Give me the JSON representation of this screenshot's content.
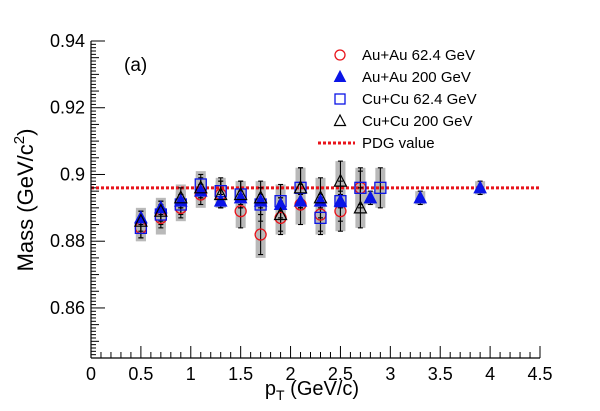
{
  "chart_data": {
    "type": "scatter",
    "panel_label": "(a)",
    "xlabel": {
      "main": "p",
      "sub": "T",
      "rest": " (GeV/c)"
    },
    "ylabel": {
      "main": "Mass (GeV/c",
      "sup": "2",
      "rest": ")"
    },
    "xlim": [
      0,
      4.5
    ],
    "ylim": [
      0.845,
      0.94
    ],
    "xticks": [
      0,
      0.5,
      1,
      1.5,
      2,
      2.5,
      3,
      3.5,
      4,
      4.5
    ],
    "xtick_labels": [
      "0",
      "0.5",
      "1",
      "1.5",
      "2",
      "2.5",
      "3",
      "3.5",
      "4",
      "4.5"
    ],
    "yticks": [
      0.86,
      0.88,
      0.9,
      0.92,
      0.94
    ],
    "ytick_labels": [
      "0.86",
      "0.88",
      "0.9",
      "0.92",
      "0.94"
    ],
    "grid": false,
    "legend_position": "top-right",
    "reference_line": {
      "name": "PDG value",
      "y": 0.896,
      "color": "#e8131a"
    },
    "series": [
      {
        "name": "Au+Au 62.4 GeV",
        "marker": "open-circle",
        "color": "#e8131a",
        "points": [
          {
            "x": 0.5,
            "y": 0.884,
            "err": 0.003,
            "sys": 0.004
          },
          {
            "x": 0.7,
            "y": 0.887,
            "err": 0.003,
            "sys": 0.005
          },
          {
            "x": 0.9,
            "y": 0.89,
            "err": 0.003,
            "sys": 0.004
          },
          {
            "x": 1.1,
            "y": 0.894,
            "err": 0.003,
            "sys": 0.004
          },
          {
            "x": 1.3,
            "y": 0.894,
            "err": 0.004,
            "sys": 0.004
          },
          {
            "x": 1.5,
            "y": 0.889,
            "err": 0.005,
            "sys": 0.005
          },
          {
            "x": 1.7,
            "y": 0.882,
            "err": 0.006,
            "sys": 0.007
          },
          {
            "x": 1.9,
            "y": 0.887,
            "err": 0.005,
            "sys": 0.005
          },
          {
            "x": 2.1,
            "y": 0.891,
            "err": 0.006,
            "sys": 0.006
          },
          {
            "x": 2.3,
            "y": 0.888,
            "err": 0.005,
            "sys": 0.005
          },
          {
            "x": 2.5,
            "y": 0.889,
            "err": 0.006,
            "sys": 0.006
          },
          {
            "x": 2.7,
            "y": 0.896,
            "err": 0.005,
            "sys": 0.005
          }
        ]
      },
      {
        "name": "Au+Au 200 GeV",
        "marker": "filled-triangle",
        "color": "#0a14e6",
        "points": [
          {
            "x": 0.5,
            "y": 0.887,
            "err": 0.002,
            "sys": 0.002
          },
          {
            "x": 0.7,
            "y": 0.89,
            "err": 0.002,
            "sys": 0.002
          },
          {
            "x": 0.9,
            "y": 0.892,
            "err": 0.002,
            "sys": 0.002
          },
          {
            "x": 1.1,
            "y": 0.895,
            "err": 0.002,
            "sys": 0.002
          },
          {
            "x": 1.3,
            "y": 0.892,
            "err": 0.002,
            "sys": 0.002
          },
          {
            "x": 1.5,
            "y": 0.893,
            "err": 0.002,
            "sys": 0.002
          },
          {
            "x": 1.7,
            "y": 0.892,
            "err": 0.002,
            "sys": 0.002
          },
          {
            "x": 1.9,
            "y": 0.891,
            "err": 0.002,
            "sys": 0.002
          },
          {
            "x": 2.1,
            "y": 0.892,
            "err": 0.002,
            "sys": 0.002
          },
          {
            "x": 2.3,
            "y": 0.892,
            "err": 0.002,
            "sys": 0.002
          },
          {
            "x": 2.5,
            "y": 0.892,
            "err": 0.002,
            "sys": 0.002
          },
          {
            "x": 2.8,
            "y": 0.893,
            "err": 0.002,
            "sys": 0.002
          },
          {
            "x": 3.3,
            "y": 0.893,
            "err": 0.002,
            "sys": 0.002
          },
          {
            "x": 3.9,
            "y": 0.896,
            "err": 0.002,
            "sys": 0.002
          }
        ]
      },
      {
        "name": "Cu+Cu 62.4 GeV",
        "marker": "open-square",
        "color": "#0a14e6",
        "points": [
          {
            "x": 0.5,
            "y": 0.884,
            "err": 0.003,
            "sys": 0.004
          },
          {
            "x": 0.7,
            "y": 0.888,
            "err": 0.003,
            "sys": 0.004
          },
          {
            "x": 0.9,
            "y": 0.891,
            "err": 0.003,
            "sys": 0.004
          },
          {
            "x": 1.1,
            "y": 0.897,
            "err": 0.003,
            "sys": 0.004
          },
          {
            "x": 1.3,
            "y": 0.895,
            "err": 0.004,
            "sys": 0.004
          },
          {
            "x": 1.5,
            "y": 0.894,
            "err": 0.004,
            "sys": 0.004
          },
          {
            "x": 1.7,
            "y": 0.891,
            "err": 0.005,
            "sys": 0.005
          },
          {
            "x": 1.9,
            "y": 0.892,
            "err": 0.005,
            "sys": 0.005
          },
          {
            "x": 2.1,
            "y": 0.896,
            "err": 0.006,
            "sys": 0.006
          },
          {
            "x": 2.3,
            "y": 0.887,
            "err": 0.005,
            "sys": 0.005
          },
          {
            "x": 2.5,
            "y": 0.892,
            "err": 0.006,
            "sys": 0.006
          },
          {
            "x": 2.7,
            "y": 0.896,
            "err": 0.006,
            "sys": 0.006
          },
          {
            "x": 2.9,
            "y": 0.896,
            "err": 0.006,
            "sys": 0.006
          }
        ]
      },
      {
        "name": "Cu+Cu 200 GeV",
        "marker": "open-triangle",
        "color": "#000000",
        "points": [
          {
            "x": 0.5,
            "y": 0.886,
            "err": 0.003,
            "sys": 0.004
          },
          {
            "x": 0.7,
            "y": 0.889,
            "err": 0.003,
            "sys": 0.004
          },
          {
            "x": 0.9,
            "y": 0.893,
            "err": 0.003,
            "sys": 0.004
          },
          {
            "x": 1.1,
            "y": 0.896,
            "err": 0.003,
            "sys": 0.004
          },
          {
            "x": 1.3,
            "y": 0.894,
            "err": 0.004,
            "sys": 0.004
          },
          {
            "x": 1.5,
            "y": 0.894,
            "err": 0.004,
            "sys": 0.004
          },
          {
            "x": 1.7,
            "y": 0.893,
            "err": 0.005,
            "sys": 0.005
          },
          {
            "x": 1.9,
            "y": 0.888,
            "err": 0.005,
            "sys": 0.005
          },
          {
            "x": 2.1,
            "y": 0.896,
            "err": 0.006,
            "sys": 0.006
          },
          {
            "x": 2.3,
            "y": 0.893,
            "err": 0.006,
            "sys": 0.006
          },
          {
            "x": 2.5,
            "y": 0.898,
            "err": 0.006,
            "sys": 0.006
          },
          {
            "x": 2.7,
            "y": 0.89,
            "err": 0.006,
            "sys": 0.006
          }
        ]
      }
    ]
  }
}
